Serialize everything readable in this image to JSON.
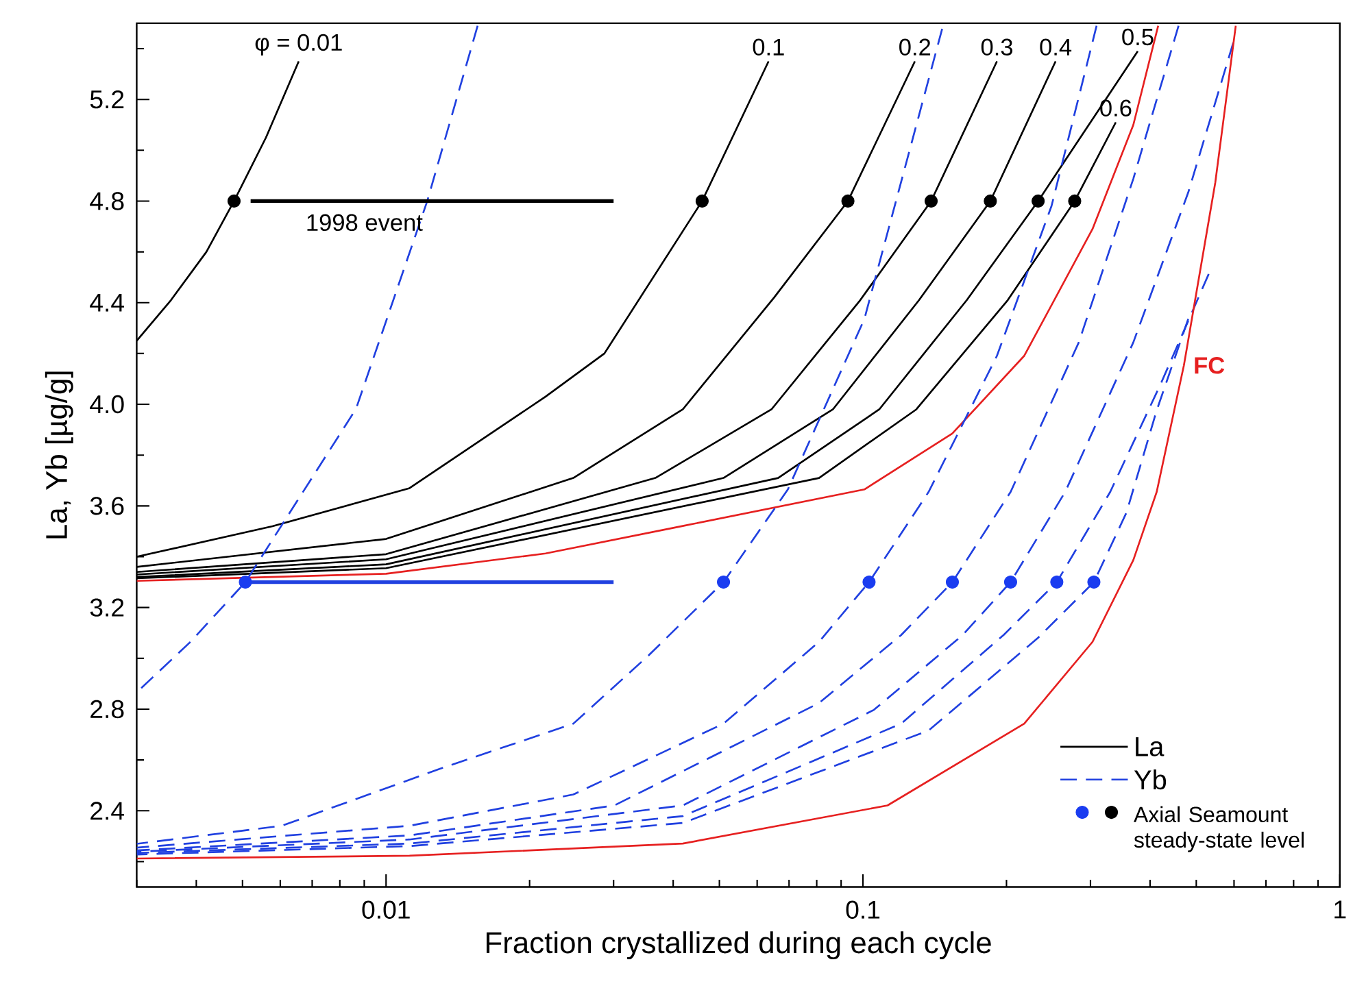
{
  "chart_data": {
    "type": "line",
    "xlabel": "Fraction crystallized during each cycle",
    "ylabel": "La, Yb [µg/g]",
    "log": "x",
    "xlim": [
      0.003,
      1
    ],
    "ylim": [
      2.1,
      5.5
    ],
    "xticks": [
      {
        "value": 0.003,
        "label": null
      },
      {
        "value": 0.004,
        "label": null
      },
      {
        "value": 0.005,
        "label": null
      },
      {
        "value": 0.006,
        "label": null
      },
      {
        "value": 0.007,
        "label": null
      },
      {
        "value": 0.008,
        "label": null
      },
      {
        "value": 0.009,
        "label": null
      },
      0.01,
      {
        "value": 0.02,
        "label": null
      },
      {
        "value": 0.03,
        "label": null
      },
      {
        "value": 0.04,
        "label": null
      },
      {
        "value": 0.05,
        "label": null
      },
      {
        "value": 0.06,
        "label": null
      },
      {
        "value": 0.07,
        "label": null
      },
      {
        "value": 0.08,
        "label": null
      },
      {
        "value": 0.09,
        "label": null
      },
      0.1,
      {
        "value": 0.2,
        "label": null
      },
      {
        "value": 0.3,
        "label": null
      },
      {
        "value": 0.4,
        "label": null
      },
      {
        "value": 0.5,
        "label": null
      },
      {
        "value": 0.6,
        "label": null
      },
      {
        "value": 0.7,
        "label": null
      },
      {
        "value": 0.8,
        "label": null
      },
      {
        "value": 0.9,
        "label": null
      },
      1
    ],
    "yticks": [
      {
        "value": 2.2,
        "label": null
      },
      2.4,
      {
        "value": 2.6,
        "label": null
      },
      2.8,
      {
        "value": 3.0,
        "label": null
      },
      3.2,
      {
        "value": 3.4,
        "label": null
      },
      3.6,
      {
        "value": 3.8,
        "label": null
      },
      {
        "value": 4,
        "label": "4.0"
      },
      {
        "value": 4.2,
        "label": null
      },
      4.4,
      {
        "value": 4.6,
        "label": null
      },
      4.8,
      {
        "value": 5.0,
        "label": null
      },
      5.2,
      {
        "value": 5.4,
        "label": null
      }
    ],
    "grid": false,
    "legend": "bottom right",
    "line_style": "solid",
    "series": [
      {
        "name": "La",
        "color": "#000000",
        "x": [
          0.003,
          0.00354,
          0.0042,
          0.0048,
          0.0056,
          0.00656
        ],
        "values": [
          4.25,
          4.41,
          4.6,
          4.8,
          5.05,
          5.35
        ]
      },
      {
        "color": "#000000",
        "x": [
          0.003,
          0.00578,
          0.0112,
          0.0216,
          0.0287,
          0.046,
          0.0634
        ],
        "values": [
          3.4,
          3.52,
          3.67,
          4.03,
          4.2,
          4.8,
          5.35
        ]
      },
      {
        "color": "#000000",
        "x": [
          0.003,
          0.01,
          0.0247,
          0.0419,
          0.0651,
          0.093,
          0.1285
        ],
        "values": [
          3.36,
          3.47,
          3.71,
          3.98,
          4.42,
          4.8,
          5.35
        ]
      },
      {
        "color": "#000000",
        "x": [
          0.003,
          0.01,
          0.0367,
          0.0643,
          0.0987,
          0.139,
          0.191
        ],
        "values": [
          3.34,
          3.41,
          3.71,
          3.98,
          4.41,
          4.8,
          5.35
        ]
      },
      {
        "color": "#000000",
        "x": [
          0.003,
          0.01,
          0.051,
          0.0865,
          0.1311,
          0.185,
          0.2535
        ],
        "values": [
          3.33,
          3.39,
          3.71,
          3.98,
          4.41,
          4.8,
          5.35
        ]
      },
      {
        "color": "#000000",
        "x": [
          0.003,
          0.01,
          0.0664,
          0.1082,
          0.1651,
          0.233,
          0.377
        ],
        "values": [
          3.32,
          3.37,
          3.71,
          3.98,
          4.41,
          4.8,
          5.39
        ]
      },
      {
        "color": "#000000",
        "x": [
          0.003,
          0.01,
          0.0809,
          0.1294,
          0.2012,
          0.278,
          0.339
        ],
        "values": [
          3.315,
          3.355,
          3.71,
          3.98,
          4.41,
          4.8,
          5.11
        ]
      },
      {
        "color": "#e62020",
        "x": [
          0.003,
          0.01,
          0.0216,
          0.0419,
          0.1007,
          0.154,
          0.2179,
          0.303,
          0.369,
          0.416
        ],
        "values": [
          3.305,
          3.333,
          3.413,
          3.521,
          3.665,
          3.885,
          4.191,
          4.69,
          5.1,
          5.49
        ]
      },
      {
        "name": "Yb",
        "color": "#2040e0",
        "line_style": "dashed",
        "x": [
          0.003,
          0.00389,
          0.00507,
          0.00865,
          0.0122,
          0.01556
        ],
        "values": [
          2.866,
          3.065,
          3.3,
          3.982,
          4.8,
          5.49
        ]
      },
      {
        "color": "#2040e0",
        "line_style": "dashed",
        "x": [
          0.003,
          0.00605,
          0.013,
          0.0247,
          0.0355,
          0.051,
          0.0696,
          0.1007,
          0.1466
        ],
        "values": [
          2.27,
          2.341,
          2.566,
          2.743,
          3.011,
          3.3,
          3.665,
          4.336,
          5.478
        ]
      },
      {
        "color": "#2040e0",
        "line_style": "dashed",
        "x": [
          0.003,
          0.0112,
          0.0247,
          0.051,
          0.0809,
          0.103,
          0.1373,
          0.191,
          0.2486,
          0.309
        ],
        "values": [
          2.255,
          2.341,
          2.464,
          2.743,
          3.065,
          3.3,
          3.655,
          4.191,
          4.781,
          5.49
        ]
      },
      {
        "color": "#2040e0",
        "line_style": "dashed",
        "x": [
          0.003,
          0.0112,
          0.0301,
          0.0809,
          0.1203,
          0.154,
          0.204,
          0.2836,
          0.369,
          0.459
        ],
        "values": [
          2.244,
          2.303,
          2.421,
          2.824,
          3.092,
          3.3,
          3.655,
          4.244,
          4.888,
          5.49
        ]
      },
      {
        "color": "#2040e0",
        "line_style": "dashed",
        "x": [
          0.003,
          0.0112,
          0.0419,
          0.1054,
          0.1619,
          0.204,
          0.2655,
          0.369,
          0.481,
          0.598
        ],
        "values": [
          2.239,
          2.287,
          2.421,
          2.797,
          3.092,
          3.3,
          3.655,
          4.244,
          4.834,
          5.424
        ]
      },
      {
        "color": "#2040e0",
        "line_style": "dashed",
        "x": [
          0.003,
          0.0112,
          0.0419,
          0.1203,
          0.1973,
          0.255,
          0.33,
          0.422,
          0.531
        ],
        "values": [
          2.234,
          2.271,
          2.379,
          2.743,
          3.092,
          3.3,
          3.655,
          4.084,
          4.513
        ]
      },
      {
        "color": "#2040e0",
        "line_style": "dashed",
        "x": [
          0.003,
          0.0112,
          0.0419,
          0.1373,
          0.233,
          0.305,
          0.357,
          0.413,
          0.481
        ],
        "values": [
          2.228,
          2.261,
          2.352,
          2.716,
          3.081,
          3.3,
          3.574,
          3.976,
          4.336
        ]
      },
      {
        "color": "#e62020",
        "x": [
          0.003,
          0.0112,
          0.0419,
          0.1126,
          0.2179,
          0.303,
          0.369,
          0.413,
          0.471,
          0.548,
          0.605
        ],
        "values": [
          2.212,
          2.223,
          2.271,
          2.421,
          2.743,
          3.065,
          3.387,
          3.655,
          4.153,
          4.872,
          5.49
        ]
      },
      {
        "color": "#000000",
        "x": [
          0.0052,
          0.03
        ],
        "values": [
          4.8,
          4.8
        ]
      },
      {
        "color": "#2040e0",
        "x": [
          0.0052,
          0.03
        ],
        "values": [
          3.3,
          3.3
        ]
      },
      {
        "name": "Axial Seamount steady-state level",
        "type": "scatter",
        "marker": "circle",
        "color": "#000000",
        "x": [
          0.0048,
          0.046,
          0.093,
          0.139,
          0.185,
          0.233,
          0.278
        ],
        "values": [
          4.8,
          4.8,
          4.8,
          4.8,
          4.8,
          4.8,
          4.8
        ]
      },
      {
        "type": "scatter",
        "marker": "circle",
        "color": "#1a3cf0",
        "x": [
          0.00507,
          0.051,
          0.103,
          0.154,
          0.204,
          0.255,
          0.305
        ],
        "values": [
          3.3,
          3.3,
          3.3,
          3.3,
          3.3,
          3.3,
          3.3
        ]
      }
    ],
    "annotations": [
      {
        "text": "φ =  0.01",
        "x": 0.00656,
        "y": 5.35
      },
      {
        "text": "0.1",
        "x": 0.0634,
        "y": 5.35
      },
      {
        "text": "0.2",
        "x": 0.1285,
        "y": 5.35
      },
      {
        "text": "0.3",
        "x": 0.191,
        "y": 5.35
      },
      {
        "text": "0.4",
        "x": 0.2535,
        "y": 5.35
      },
      {
        "text": "0.5",
        "x": 0.377,
        "y": 5.39
      },
      {
        "text": "0.6",
        "x": 0.339,
        "y": 5.11
      },
      {
        "text": "**FC**",
        "x": 0.471,
        "y": 4.153
      },
      {
        "text": "1998 event",
        "x": 0.009,
        "y": 4.8
      }
    ]
  }
}
